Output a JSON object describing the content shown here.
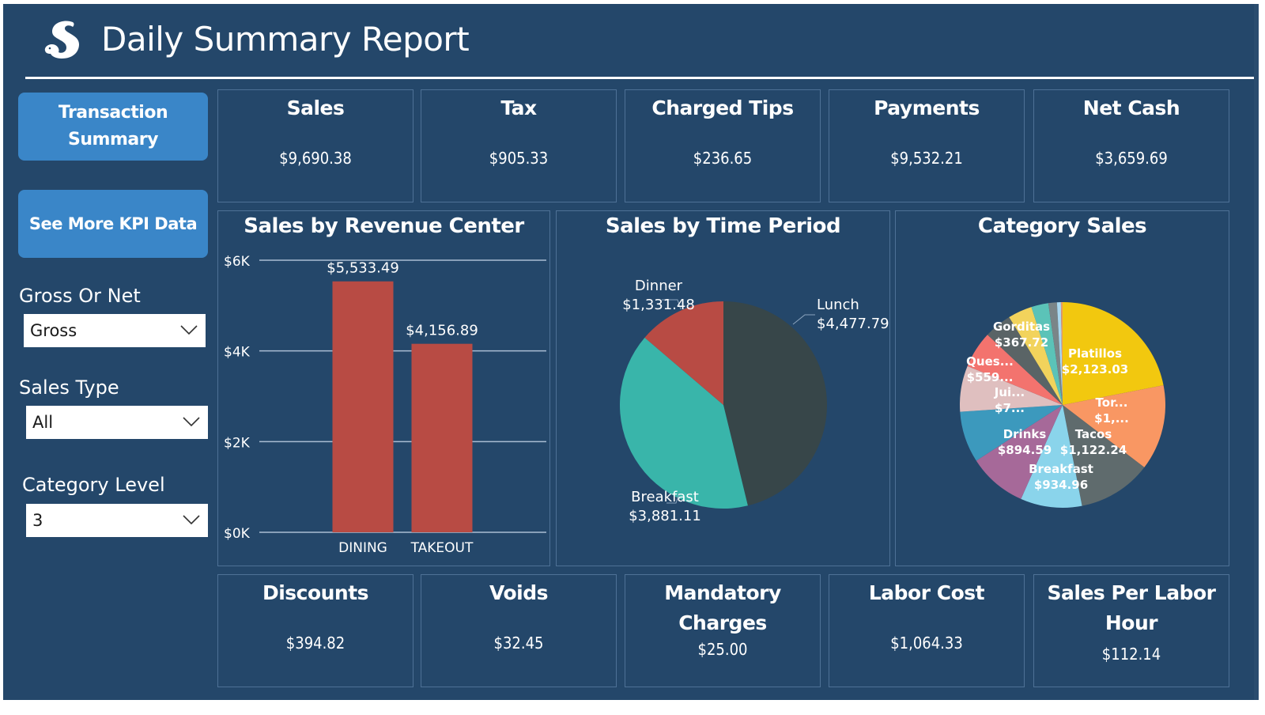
{
  "header": {
    "title": "Daily Summary Report",
    "logo_icon": "squirrel-logo-icon"
  },
  "nav": {
    "transaction_summary": "Transaction Summary",
    "see_more_kpi": "See More KPI Data"
  },
  "filters": [
    {
      "label": "Gross Or Net",
      "value": "Gross"
    },
    {
      "label": "Sales Type",
      "value": "All"
    },
    {
      "label": "Category Level",
      "value": "3"
    }
  ],
  "kpis_top": [
    {
      "title": "Sales",
      "value": "$9,690.38"
    },
    {
      "title": "Tax",
      "value": "$905.33"
    },
    {
      "title": "Charged Tips",
      "value": "$236.65"
    },
    {
      "title": "Payments",
      "value": "$9,532.21"
    },
    {
      "title": "Net Cash",
      "value": "$3,659.69"
    }
  ],
  "kpis_bottom": [
    {
      "title": "Discounts",
      "value": "$394.82"
    },
    {
      "title": "Voids",
      "value": "$32.45"
    },
    {
      "title": "Mandatory Charges",
      "value": "$25.00"
    },
    {
      "title": "Labor Cost",
      "value": "$1,064.33"
    },
    {
      "title": "Sales Per Labor Hour",
      "value": "$112.14"
    }
  ],
  "chart_data": [
    {
      "type": "bar",
      "title": "Sales by Revenue Center",
      "categories": [
        "DINING",
        "TAKEOUT"
      ],
      "values": [
        5533.49,
        4156.89
      ],
      "data_labels": [
        "$5,533.49",
        "$4,156.89"
      ],
      "xlabel": "",
      "ylabel": "",
      "ylim": [
        0,
        6000
      ],
      "yticks": [
        0,
        2000,
        4000,
        6000
      ],
      "ytick_labels": [
        "$0K",
        "$2K",
        "$4K",
        "$6K"
      ],
      "grid": true,
      "color": "#b84b44"
    },
    {
      "type": "pie",
      "title": "Sales by Time Period",
      "slices": [
        {
          "label": "Lunch",
          "value": 4477.79,
          "display": "$4,477.79",
          "color": "#374649"
        },
        {
          "label": "Breakfast",
          "value": 3881.11,
          "display": "$3,881.11",
          "color": "#39b5aa"
        },
        {
          "label": "Dinner",
          "value": 1331.48,
          "display": "$1,331.48",
          "color": "#b84b44"
        }
      ]
    },
    {
      "type": "pie",
      "title": "Category Sales",
      "slices": [
        {
          "label": "Platillos",
          "value": 2123.03,
          "display_label": "Platillos",
          "display_value": "$2,123.03",
          "color": "#f2c80f"
        },
        {
          "label": "Tor...",
          "value": 1300,
          "display_label": "Tor...",
          "display_value": "$1,...",
          "color": "#f99763"
        },
        {
          "label": "Tacos",
          "value": 1122.24,
          "display_label": "Tacos",
          "display_value": "$1,122.24",
          "color": "#5f6b6d"
        },
        {
          "label": "Breakfast",
          "value": 934.96,
          "display_label": "Breakfast",
          "display_value": "$934.96",
          "color": "#8ad4eb"
        },
        {
          "label": "Drinks",
          "value": 894.59,
          "display_label": "Drinks",
          "display_value": "$894.59",
          "color": "#a66999"
        },
        {
          "label": "(unlabeled)",
          "value": 780,
          "display_label": "",
          "display_value": "",
          "color": "#3c99bd"
        },
        {
          "label": "Jui...",
          "value": 700,
          "display_label": "Jui...",
          "display_value": "$7...",
          "color": "#dfbfbf"
        },
        {
          "label": "Ques...",
          "value": 559,
          "display_label": "Ques...",
          "display_value": "$559...",
          "color": "#f3736e"
        },
        {
          "label": "(unlabeled)",
          "value": 420,
          "display_label": "",
          "display_value": "",
          "color": "#5a6466"
        },
        {
          "label": "Gorditas",
          "value": 367.72,
          "display_label": "Gorditas",
          "display_value": "$367.72",
          "color": "#f2d35c"
        },
        {
          "label": "(unlabeled)",
          "value": 260,
          "display_label": "",
          "display_value": "",
          "color": "#5bc3b8"
        },
        {
          "label": "(unlabeled)",
          "value": 130,
          "display_label": "",
          "display_value": "",
          "color": "#7a8588"
        },
        {
          "label": "(unlabeled)",
          "value": 60,
          "display_label": "",
          "display_value": "",
          "color": "#a9d8f0"
        },
        {
          "label": "(unlabeled)",
          "value": 25,
          "display_label": "",
          "display_value": "",
          "color": "#e59a6a"
        }
      ]
    }
  ]
}
